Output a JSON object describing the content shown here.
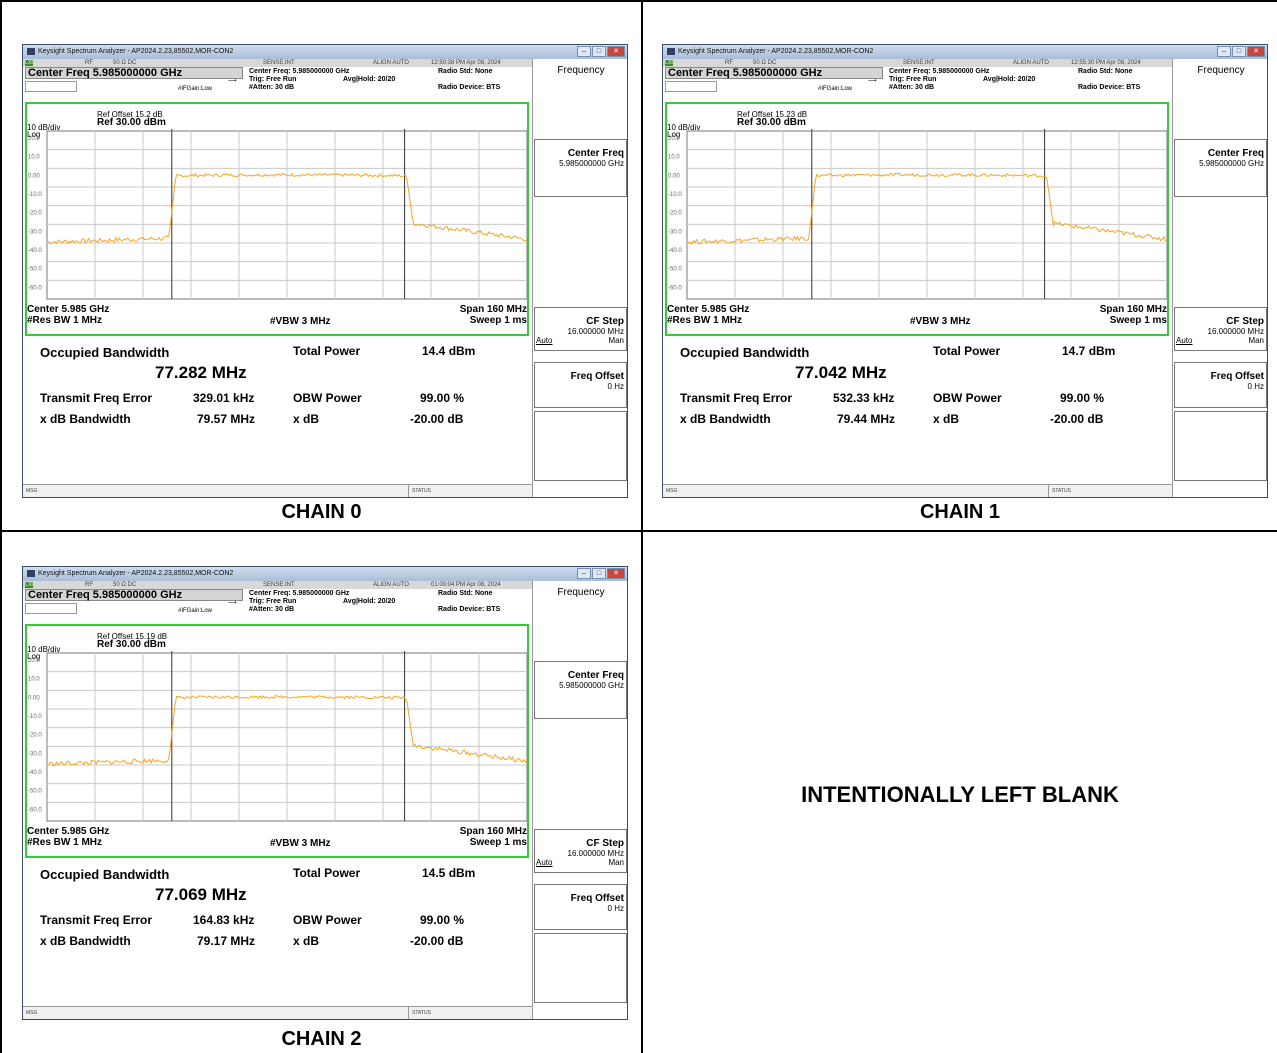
{
  "layout_note_none": "",
  "app_title": "Keysight Spectrum Analyzer - AP2024.2.23,85502,MOR-CON2",
  "blank_text": "INTENTIONALLY LEFT BLANK",
  "common": {
    "status_rf": "RF",
    "status_ohm": "50 Ω DC",
    "sense": "SENSE:INT",
    "align": "ALIGN AUTO",
    "cf_title": "Center Freq 5.985000000 GHz",
    "hdr_center_freq": "Center Freq: 5.985000000 GHz",
    "hdr_trig": "Trig: Free Run",
    "hdr_avg": "Avg|Hold: 20/20",
    "hdr_atten": "#Atten: 30 dB",
    "hdr_ifgain": "#IFGain:Low",
    "hdr_radio_std": "Radio Std: None",
    "hdr_radio_dev": "Radio Device: BTS",
    "ref_level": "Ref 30.00 dBm",
    "scale": "10 dB/div",
    "log": "Log",
    "y_ticks": [
      "20.0",
      "10.0",
      "0.00",
      "-10.0",
      "-20.0",
      "-30.0",
      "-40.0",
      "-50.0",
      "-60.0"
    ],
    "center_label": "Center  5.985 GHz",
    "span_label": "Span 160 MHz",
    "rbw_label": "#Res BW  1 MHz",
    "vbw_label": "#VBW  3 MHz",
    "sweep_label": "Sweep  1 ms",
    "obw_title": "Occupied Bandwidth",
    "total_power_label": "Total Power",
    "tfe_label": "Transmit Freq Error",
    "obw_power_label": "OBW Power",
    "obw_power_val": "99.00 %",
    "xdb_bw_label": "x dB Bandwidth",
    "xdb_label": "x dB",
    "xdb_val": "-20.00 dB",
    "msg": "MSG",
    "status": "STATUS",
    "softkeys": {
      "title": "Frequency",
      "center_freq": "Center Freq",
      "center_freq_val": "5.985000000 GHz",
      "cf_step": "CF Step",
      "cf_step_val": "16.000000 MHz",
      "auto": "Auto",
      "man": "Man",
      "freq_offset": "Freq Offset",
      "freq_offset_val": "0 Hz"
    },
    "trace_color": "#f5a623",
    "frame_color": "#33cc33"
  },
  "chains": [
    {
      "caption": "CHAIN 0",
      "timestamp": "12:50:38 PM Apr 08, 2024",
      "ref_offset": "Ref Offset 15.2 dB",
      "occupied_bw": "77.282 MHz",
      "total_power": "14.4 dBm",
      "transmit_freq_error": "329.01 kHz",
      "xdb_bandwidth": "79.57 MHz"
    },
    {
      "caption": "CHAIN 1",
      "timestamp": "12:55:30 PM Apr 08, 2024",
      "ref_offset": "Ref Offset 15.23 dB",
      "occupied_bw": "77.042 MHz",
      "total_power": "14.7 dBm",
      "transmit_freq_error": "532.33 kHz",
      "xdb_bandwidth": "79.44 MHz"
    },
    {
      "caption": "CHAIN 2",
      "timestamp": "01:00:04 PM Apr 08, 2024",
      "ref_offset": "Ref Offset 15.19 dB",
      "occupied_bw": "77.069 MHz",
      "total_power": "14.5 dBm",
      "transmit_freq_error": "164.83 kHz",
      "xdb_bandwidth": "79.17 MHz"
    }
  ]
}
